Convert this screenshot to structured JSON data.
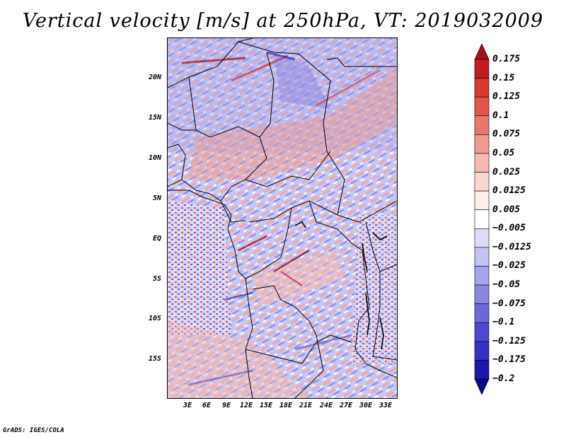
{
  "title": "Vertical velocity [m/s] at 250hPa, VT: 2019032009",
  "credit": "GrADS: IGES/COLA",
  "map": {
    "lat_labels": [
      "20N",
      "15N",
      "10N",
      "5N",
      "EQ",
      "5S",
      "10S",
      "15S"
    ],
    "lon_labels": [
      "3E",
      "6E",
      "9E",
      "12E",
      "15E",
      "18E",
      "21E",
      "24E",
      "27E",
      "30E",
      "33E"
    ]
  },
  "colorbar": {
    "labels": [
      "0.175",
      "0.15",
      "0.125",
      "0.1",
      "0.075",
      "0.05",
      "0.025",
      "0.0125",
      "0.005",
      "−0.005",
      "−0.0125",
      "−0.025",
      "−0.05",
      "−0.075",
      "−0.1",
      "−0.125",
      "−0.175",
      "−0.2"
    ],
    "colors": [
      "#a30f1c",
      "#c01c22",
      "#d43a30",
      "#e2564a",
      "#e57a6c",
      "#f09a8e",
      "#f7b9b0",
      "#fbd6d0",
      "#fdeeea",
      "#ffffff",
      "#dcdcf9",
      "#c4c3f3",
      "#a6a4ec",
      "#8a86e4",
      "#6d68da",
      "#4e49cf",
      "#3530c0",
      "#1d16a8",
      "#0a0690"
    ]
  }
}
